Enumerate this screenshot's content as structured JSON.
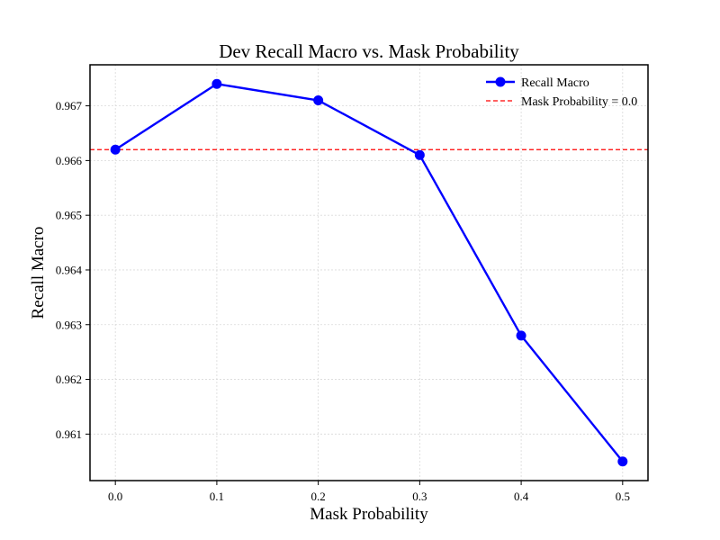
{
  "chart_data": {
    "type": "line",
    "title": "Dev Recall Macro vs. Mask Probability",
    "xlabel": "Mask Probability",
    "ylabel": "Recall Macro",
    "x": [
      0.0,
      0.1,
      0.2,
      0.3,
      0.4,
      0.5
    ],
    "x_tick_labels": [
      "0.0",
      "0.1",
      "0.2",
      "0.3",
      "0.4",
      "0.5"
    ],
    "y_ticks": [
      0.961,
      0.962,
      0.963,
      0.964,
      0.965,
      0.966,
      0.967
    ],
    "y_tick_labels": [
      "0.961",
      "0.962",
      "0.963",
      "0.964",
      "0.965",
      "0.966",
      "0.967"
    ],
    "xlim": [
      -0.025,
      0.525
    ],
    "ylim": [
      0.96015,
      0.96775
    ],
    "grid": true,
    "legend_position": "top-right",
    "series": [
      {
        "name": "Recall Macro",
        "values": [
          0.9662,
          0.9674,
          0.9671,
          0.9661,
          0.9628,
          0.9605
        ],
        "color": "#0000ff",
        "marker": "circle"
      }
    ],
    "reference_line": {
      "name": "Mask Probability = 0.0",
      "y": 0.9662,
      "color": "#ff0000",
      "style": "dashed"
    }
  }
}
